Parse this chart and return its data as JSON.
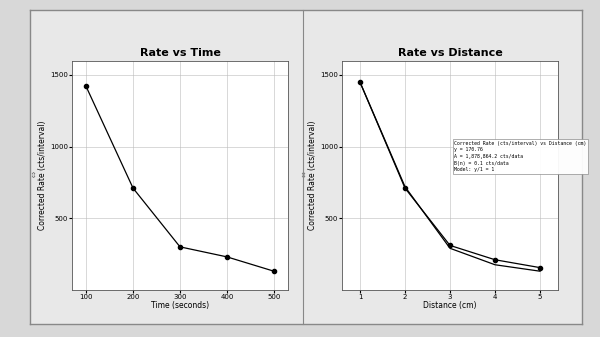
{
  "title_left": "Rate vs Time",
  "title_right": "Rate vs Distance",
  "xlabel_left": "Time (seconds)",
  "xlabel_right": "Distance (cm)",
  "ylabel": "Corrected Rate (cts/interval)",
  "ylim": [
    0,
    1600
  ],
  "yticks": [
    500,
    1000,
    1500
  ],
  "time_x": [
    100,
    200,
    300,
    400,
    500
  ],
  "time_y": [
    1420,
    710,
    300,
    230,
    130
  ],
  "dist_x": [
    1,
    2,
    3,
    4,
    5
  ],
  "dist_y1": [
    1450,
    710,
    310,
    210,
    155
  ],
  "dist_y2": [
    1450,
    720,
    290,
    175,
    130
  ],
  "xticks_left": [
    100,
    200,
    300,
    400,
    500
  ],
  "xticks_right": [
    1,
    2,
    3,
    4,
    5
  ],
  "xlim_left": [
    70,
    530
  ],
  "xlim_right": [
    0.6,
    5.4
  ],
  "bg_color": "#d8d8d8",
  "outer_box_color": "#e8e8e8",
  "plot_bg": "#ffffff",
  "line_color": "#000000",
  "marker": "o",
  "markersize": 3,
  "linewidth": 0.9,
  "grid_color": "#bbbbbb",
  "legend_text": "Corrected Rate (cts/interval) vs Distance (cm)\ny = 170.76\nA = 1,878,864.2 cts/data\nB(n) = 0.1 cts/data\nModel: y/1 = 1",
  "title_fontsize": 8,
  "label_fontsize": 5.5,
  "tick_fontsize": 5,
  "legend_fontsize": 3.5
}
